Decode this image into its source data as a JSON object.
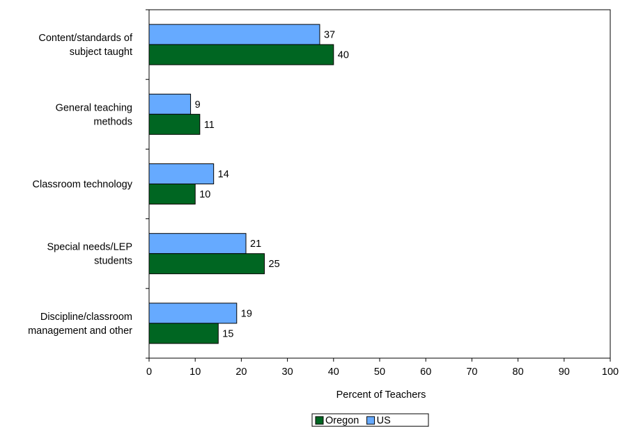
{
  "chart_data": {
    "type": "bar",
    "orientation": "horizontal",
    "categories": [
      [
        "Content/standards of",
        "subject taught"
      ],
      [
        "General teaching",
        "methods"
      ],
      [
        "Classroom technology"
      ],
      [
        "Special needs/LEP",
        "students"
      ],
      [
        "Discipline/classroom",
        "management and other"
      ]
    ],
    "series": [
      {
        "name": "US",
        "color": "#66aaff",
        "values": [
          37,
          9,
          14,
          21,
          19
        ]
      },
      {
        "name": "Oregon",
        "color": "#006622",
        "values": [
          40,
          11,
          10,
          25,
          15
        ]
      }
    ],
    "xlabel": "Percent of Teachers",
    "ylabel": "",
    "xlim": [
      0,
      100
    ],
    "xticks": [
      0,
      10,
      20,
      30,
      40,
      50,
      60,
      70,
      80,
      90,
      100
    ],
    "grid": false,
    "legend": {
      "position": "bottom",
      "entries": [
        {
          "name": "Oregon",
          "color": "#006622"
        },
        {
          "name": "US",
          "color": "#66aaff"
        }
      ]
    }
  }
}
